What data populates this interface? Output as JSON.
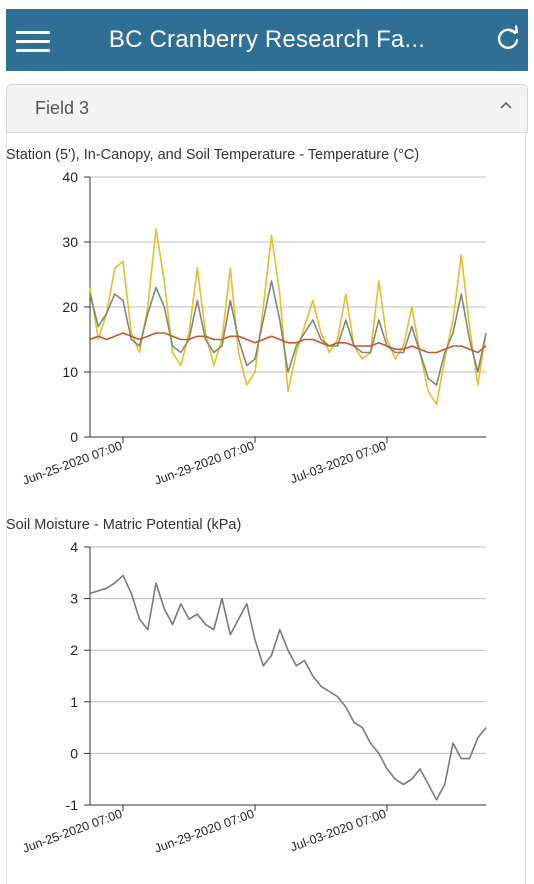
{
  "header": {
    "title": "BC Cranberry Research Fa...",
    "menu_icon": "hamburger-menu-icon",
    "refresh_icon": "refresh-icon",
    "bar_color": "#2f6f96"
  },
  "panel": {
    "title": "Field 3",
    "toggle_icon": "chevron-up-icon"
  },
  "charts": [
    {
      "title": "Station (5'), In-Canopy, and Soil Temperature - Temperature (°C)",
      "x_ticks": [
        "Jun-25-2020 07:00",
        "Jun-29-2020 07:00",
        "Jul-03-2020 07:00"
      ],
      "y_ticks": [
        "0",
        "10",
        "20",
        "30",
        "40"
      ]
    },
    {
      "title": "Soil Moisture - Matric Potential (kPa)",
      "x_ticks": [
        "Jun-25-2020 07:00",
        "Jun-29-2020 07:00",
        "Jul-03-2020 07:00"
      ],
      "y_ticks": [
        "-1",
        "0",
        "1",
        "2",
        "3",
        "4"
      ]
    }
  ],
  "chart_data": [
    {
      "type": "line",
      "title": "Station (5'), In-Canopy, and Soil Temperature - Temperature (°C)",
      "ylabel": "Temperature (°C)",
      "xlabel": "",
      "x_tick_labels": [
        "Jun-25-2020 07:00",
        "Jun-29-2020 07:00",
        "Jul-03-2020 07:00"
      ],
      "ylim": [
        0,
        40
      ],
      "grid": true,
      "x_unit": "days since start",
      "x": [
        0,
        0.25,
        0.5,
        0.75,
        1,
        1.25,
        1.5,
        1.75,
        2,
        2.25,
        2.5,
        2.75,
        3,
        3.25,
        3.5,
        3.75,
        4,
        4.25,
        4.5,
        4.75,
        5,
        5.25,
        5.5,
        5.75,
        6,
        6.25,
        6.5,
        6.75,
        7,
        7.25,
        7.5,
        7.75,
        8,
        8.25,
        8.5,
        8.75,
        9,
        9.25,
        9.5,
        9.75,
        10,
        10.25,
        10.5,
        10.75,
        11,
        11.25,
        11.5,
        11.75,
        12
      ],
      "series": [
        {
          "color": "#e5c02b",
          "values": [
            23,
            15,
            19,
            26,
            27,
            16,
            13,
            20,
            32,
            24,
            13,
            11,
            16,
            26,
            16,
            11,
            15,
            26,
            13,
            8,
            10,
            20,
            31,
            22,
            7,
            13,
            17,
            21,
            16,
            13,
            15,
            22,
            14,
            12,
            13,
            24,
            15,
            12,
            14,
            20,
            13,
            7,
            5,
            12,
            18,
            28,
            17,
            8,
            16
          ]
        },
        {
          "color": "#7b8b76",
          "values": [
            22,
            17,
            19,
            22,
            21,
            15,
            14,
            19,
            23,
            20,
            14,
            13,
            15,
            21,
            15,
            13,
            14,
            21,
            15,
            11,
            12,
            18,
            24,
            18,
            10,
            14,
            16,
            18,
            15,
            14,
            14,
            18,
            14,
            13,
            13,
            18,
            14,
            13,
            13,
            17,
            13,
            9,
            8,
            13,
            16,
            22,
            15,
            10,
            16
          ]
        },
        {
          "color": "#c8582a",
          "values": [
            15,
            15.5,
            15,
            15.5,
            16,
            15.5,
            15,
            15.5,
            16,
            16,
            15.5,
            15,
            15,
            15.5,
            15.5,
            15,
            15,
            15.5,
            15.5,
            15,
            14.5,
            15,
            15.5,
            15,
            14.5,
            14.5,
            15,
            15,
            14.5,
            14,
            14.5,
            14.5,
            14,
            14,
            14,
            14.5,
            14,
            13.5,
            13.5,
            14,
            13.5,
            13,
            13,
            13.5,
            14,
            14,
            13.5,
            13,
            14
          ]
        }
      ]
    },
    {
      "type": "line",
      "title": "Soil Moisture - Matric Potential (kPa)",
      "ylabel": "Matric Potential (kPa)",
      "xlabel": "",
      "x_tick_labels": [
        "Jun-25-2020 07:00",
        "Jun-29-2020 07:00",
        "Jul-03-2020 07:00"
      ],
      "ylim": [
        -1,
        4
      ],
      "grid": true,
      "x_unit": "days since start",
      "x": [
        0,
        0.25,
        0.5,
        0.75,
        1,
        1.25,
        1.5,
        1.75,
        2,
        2.25,
        2.5,
        2.75,
        3,
        3.25,
        3.5,
        3.75,
        4,
        4.25,
        4.5,
        4.75,
        5,
        5.25,
        5.5,
        5.75,
        6,
        6.25,
        6.5,
        6.75,
        7,
        7.25,
        7.5,
        7.75,
        8,
        8.25,
        8.5,
        8.75,
        9,
        9.25,
        9.5,
        9.75,
        10,
        10.25,
        10.5,
        10.75,
        11,
        11.25,
        11.5,
        11.75,
        12
      ],
      "series": [
        {
          "color": "#7a7a7a",
          "values": [
            3.1,
            3.15,
            3.2,
            3.3,
            3.45,
            3.1,
            2.6,
            2.4,
            3.3,
            2.8,
            2.5,
            2.9,
            2.6,
            2.7,
            2.5,
            2.4,
            3.0,
            2.3,
            2.6,
            2.9,
            2.2,
            1.7,
            1.9,
            2.4,
            2.0,
            1.7,
            1.8,
            1.5,
            1.3,
            1.2,
            1.1,
            0.9,
            0.6,
            0.5,
            0.2,
            0.0,
            -0.3,
            -0.5,
            -0.6,
            -0.5,
            -0.3,
            -0.6,
            -0.9,
            -0.6,
            0.2,
            -0.1,
            -0.1,
            0.3,
            0.5
          ]
        }
      ]
    }
  ]
}
